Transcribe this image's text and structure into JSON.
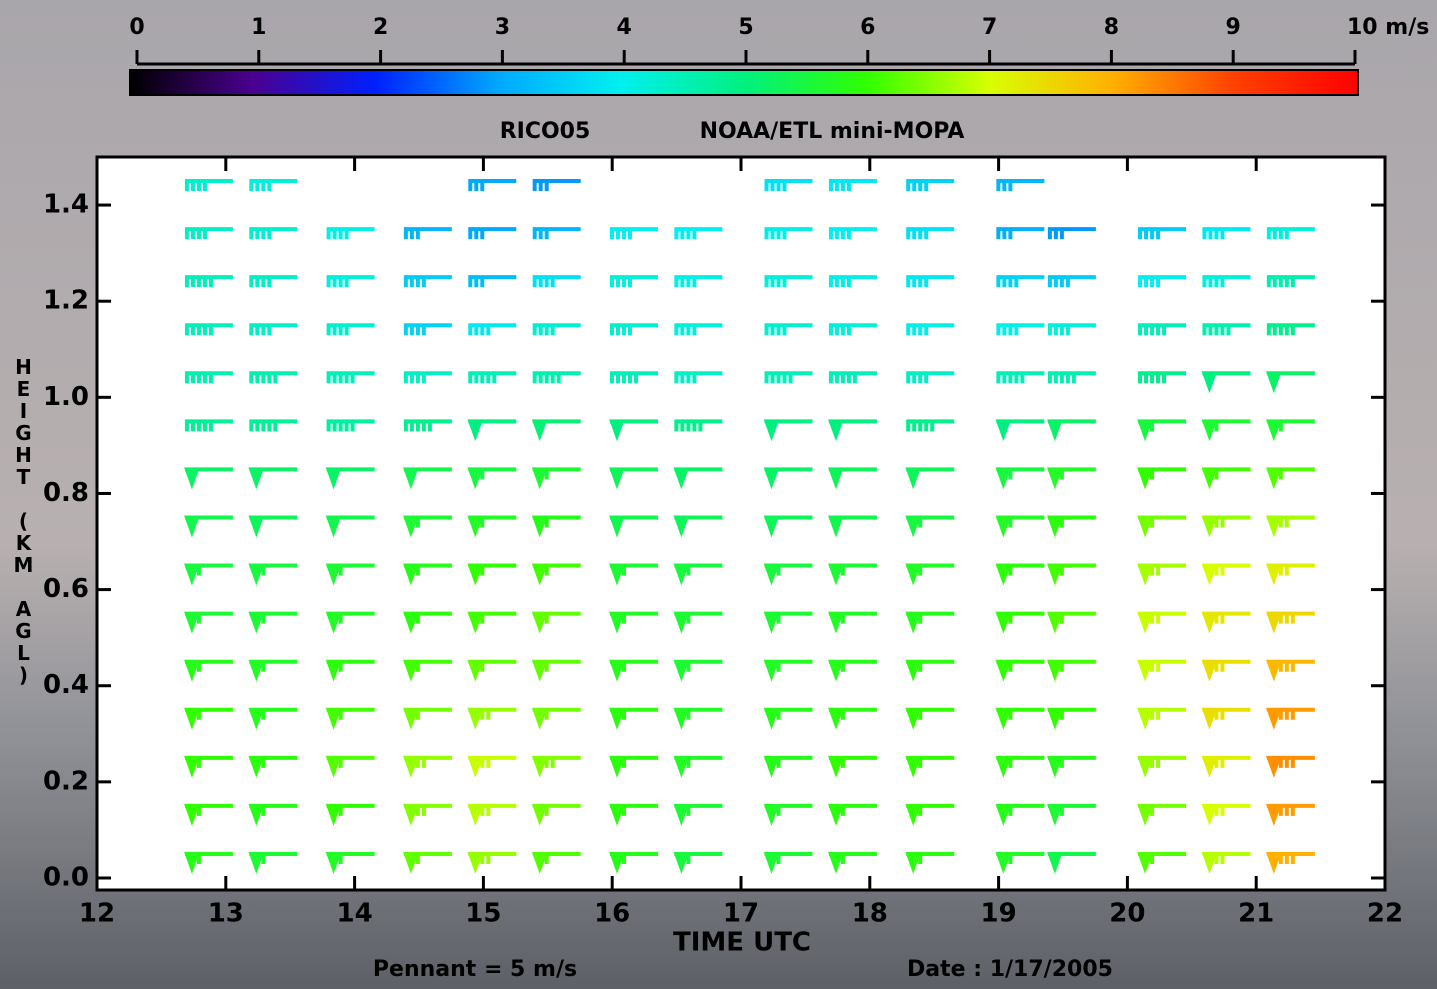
{
  "chart_data": {
    "type": "barbs",
    "title": "RICO05",
    "subtitle": "NOAA/ETL mini-MOPA",
    "x_label": "TIME UTC",
    "y_label": "HEIGHT (KM AGL)",
    "pennant_note": "Pennant = 5 m/s",
    "date_note": "Date : 1/17/2005",
    "xlim": [
      12,
      22
    ],
    "xticks": [
      12,
      13,
      14,
      15,
      16,
      17,
      18,
      19,
      20,
      21,
      22
    ],
    "ylim": [
      -0.025,
      1.5
    ],
    "yticks": [
      {
        "value": 0,
        "label": "0.0"
      },
      0.2,
      0.4,
      0.6,
      0.8,
      {
        "value": 1,
        "label": "1.0"
      },
      1.2,
      1.4
    ],
    "colorbar_lim": [
      0,
      10
    ],
    "colorbar_ticks": [
      0,
      1,
      2,
      3,
      4,
      5,
      6,
      7,
      8,
      9,
      {
        "value": 10,
        "label": "10 m/s"
      }
    ],
    "colormap": [
      "#000000",
      "#4a0090",
      "#0020ff",
      "#00a8ff",
      "#00f0f0",
      "#00f080",
      "#30ff00",
      "#d8ff00",
      "#ffb000",
      "#ff4000",
      "#ff0000"
    ],
    "x": [
      12.9,
      13.4,
      14.0,
      14.6,
      15.1,
      15.6,
      16.2,
      16.7,
      17.4,
      17.9,
      18.5,
      19.2,
      19.6,
      20.3,
      20.8,
      21.3
    ],
    "levels": [
      0.05,
      0.15,
      0.25,
      0.35,
      0.45,
      0.55,
      0.65,
      0.75,
      0.85,
      0.95,
      1.05,
      1.15,
      1.25,
      1.35,
      1.45
    ],
    "speeds": [
      [
        5.8,
        5.6,
        5.7,
        6.3,
        6.6,
        6.2,
        5.8,
        5.5,
        5.6,
        5.8,
        5.9,
        5.7,
        5.4,
        6.2,
        6.8,
        8.0
      ],
      [
        6.0,
        5.8,
        6.0,
        6.5,
        6.8,
        6.4,
        5.9,
        5.6,
        5.7,
        5.9,
        6.0,
        5.8,
        5.6,
        6.4,
        7.0,
        8.2
      ],
      [
        6.0,
        5.9,
        6.2,
        6.6,
        6.9,
        6.5,
        5.9,
        5.7,
        5.8,
        6.0,
        6.0,
        5.9,
        5.8,
        6.6,
        7.2,
        8.3
      ],
      [
        6.0,
        5.8,
        6.1,
        6.4,
        6.6,
        6.4,
        5.9,
        5.7,
        5.8,
        5.9,
        6.0,
        6.0,
        6.0,
        6.8,
        7.4,
        8.2
      ],
      [
        5.8,
        5.7,
        5.9,
        6.1,
        6.3,
        6.3,
        5.8,
        5.6,
        5.7,
        5.8,
        5.9,
        6.0,
        6.1,
        6.9,
        7.4,
        7.9
      ],
      [
        5.6,
        5.6,
        5.7,
        5.9,
        6.1,
        6.3,
        5.7,
        5.6,
        5.6,
        5.7,
        5.8,
        6.0,
        6.2,
        6.9,
        7.3,
        7.5
      ],
      [
        5.5,
        5.5,
        5.6,
        5.8,
        6.0,
        6.1,
        5.6,
        5.5,
        5.5,
        5.6,
        5.7,
        5.9,
        6.1,
        6.7,
        7.0,
        7.2
      ],
      [
        5.4,
        5.3,
        5.4,
        5.6,
        5.7,
        5.8,
        5.4,
        5.3,
        5.3,
        5.4,
        5.5,
        5.7,
        5.9,
        6.4,
        6.6,
        6.7
      ],
      [
        5.2,
        5.2,
        5.2,
        5.4,
        5.5,
        5.6,
        5.3,
        5.2,
        5.2,
        5.3,
        5.3,
        5.5,
        5.7,
        6.0,
        6.1,
        6.2
      ],
      [
        4.8,
        4.8,
        4.7,
        4.9,
        5.0,
        5.1,
        5.0,
        4.9,
        5.0,
        5.0,
        4.9,
        5.0,
        5.2,
        5.5,
        5.6,
        5.6
      ],
      [
        4.6,
        4.6,
        4.5,
        4.4,
        4.5,
        4.6,
        4.5,
        4.4,
        4.5,
        4.5,
        4.4,
        4.5,
        4.6,
        4.9,
        5.0,
        5.2
      ],
      [
        4.5,
        4.4,
        4.3,
        3.6,
        3.9,
        4.3,
        4.3,
        4.2,
        4.3,
        4.2,
        4.1,
        4.1,
        4.2,
        4.5,
        4.6,
        4.9
      ],
      [
        4.5,
        4.4,
        4.2,
        3.5,
        3.3,
        3.8,
        4.2,
        4.1,
        4.2,
        4.1,
        3.9,
        3.6,
        3.5,
        4.0,
        4.2,
        4.6
      ],
      [
        4.4,
        4.3,
        4.1,
        3.2,
        3.0,
        3.2,
        4.0,
        4.0,
        4.1,
        4.0,
        3.8,
        3.1,
        2.9,
        3.5,
        3.9,
        4.2
      ],
      [
        4.3,
        4.2,
        null,
        null,
        3.0,
        2.9,
        null,
        null,
        3.8,
        3.9,
        3.6,
        3.2,
        null,
        null,
        null,
        null
      ]
    ]
  }
}
